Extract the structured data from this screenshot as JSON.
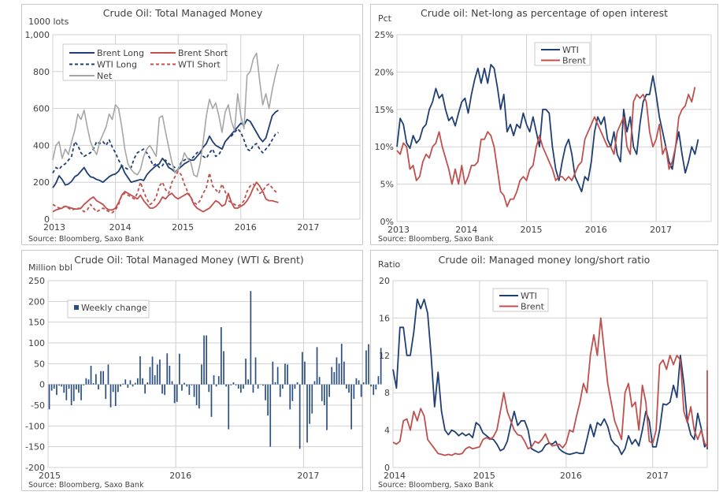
{
  "colors": {
    "navy": "#1f3f73",
    "red": "#c0504d",
    "gray": "#a6a6a6",
    "bar": "#2b4f81"
  },
  "chart_data": [
    {
      "id": "total-managed-money",
      "type": "line",
      "title": "Crude Oil: Total Managed Money",
      "ylabel": "1000 lots",
      "xlabel": "",
      "source": "Source: Bloomberg, Saxo Bank",
      "ylim": [
        0,
        1000
      ],
      "yticks": [
        0,
        200,
        400,
        600,
        800,
        1000
      ],
      "ytick_labels": [
        "0",
        "200",
        "400",
        "600",
        "800",
        "1,000"
      ],
      "xlim": [
        2013.0,
        2017.9
      ],
      "xticks": [
        2013,
        2014,
        2015,
        2016,
        2017
      ],
      "xtick_labels": [
        "2013",
        "2014",
        "2015",
        "2016",
        "2017"
      ],
      "grid": true,
      "legend": "top-left",
      "x_start": 2013.0,
      "x_step": 0.05,
      "series": [
        {
          "name": "Brent Long",
          "color": "navy",
          "dash": false,
          "values": [
            170,
            195,
            235,
            215,
            185,
            190,
            205,
            230,
            240,
            260,
            280,
            250,
            230,
            225,
            215,
            210,
            200,
            215,
            230,
            240,
            245,
            260,
            290,
            250,
            225,
            200,
            205,
            210,
            215,
            210,
            240,
            260,
            275,
            290,
            300,
            330,
            310,
            280,
            270,
            255,
            270,
            285,
            300,
            310,
            320,
            320,
            340,
            360,
            390,
            410,
            450,
            420,
            400,
            390,
            380,
            420,
            440,
            460,
            480,
            500,
            520,
            510,
            540,
            530,
            500,
            470,
            440,
            420,
            440,
            500,
            560,
            580,
            590
          ]
        },
        {
          "name": "Brent Short",
          "color": "red",
          "dash": false,
          "values": [
            40,
            50,
            55,
            60,
            70,
            65,
            60,
            55,
            55,
            60,
            80,
            95,
            110,
            120,
            100,
            90,
            80,
            60,
            50,
            50,
            60,
            90,
            130,
            150,
            140,
            130,
            120,
            110,
            130,
            100,
            80,
            60,
            60,
            70,
            90,
            120,
            110,
            130,
            140,
            120,
            110,
            120,
            130,
            140,
            120,
            80,
            60,
            50,
            40,
            50,
            60,
            80,
            100,
            90,
            70,
            80,
            140,
            90,
            60,
            60,
            70,
            80,
            100,
            130,
            170,
            200,
            180,
            150,
            110,
            100,
            100,
            95,
            90
          ]
        },
        {
          "name": "WTI Long",
          "color": "navy",
          "dash": true,
          "values": [
            250,
            280,
            270,
            290,
            300,
            320,
            340,
            420,
            400,
            360,
            340,
            350,
            360,
            380,
            420,
            410,
            420,
            400,
            430,
            390,
            360,
            320,
            290,
            280,
            270,
            280,
            330,
            360,
            370,
            380,
            360,
            330,
            290,
            300,
            280,
            290,
            320,
            300,
            290,
            280,
            270,
            310,
            320,
            330,
            320,
            340,
            360,
            370,
            340,
            330,
            360,
            380,
            340,
            350,
            380,
            420,
            440,
            450,
            470,
            490,
            470,
            430,
            380,
            370,
            400,
            410,
            380,
            360,
            380,
            400,
            430,
            460,
            470
          ]
        },
        {
          "name": "WTI Short",
          "color": "red",
          "dash": true,
          "values": [
            80,
            70,
            60,
            65,
            70,
            60,
            50,
            55,
            60,
            55,
            40,
            50,
            80,
            60,
            40,
            50,
            60,
            50,
            40,
            35,
            50,
            80,
            130,
            140,
            130,
            120,
            110,
            140,
            200,
            150,
            110,
            80,
            90,
            120,
            180,
            200,
            160,
            140,
            200,
            230,
            260,
            240,
            190,
            150,
            120,
            90,
            80,
            100,
            140,
            170,
            250,
            180,
            160,
            140,
            190,
            150,
            100,
            90,
            80,
            70,
            80,
            100,
            150,
            180,
            190,
            170,
            140,
            150,
            180,
            190,
            170,
            150,
            140
          ]
        },
        {
          "name": "Net",
          "color": "gray",
          "dash": false,
          "values": [
            320,
            400,
            420,
            330,
            380,
            350,
            420,
            480,
            570,
            540,
            590,
            500,
            420,
            380,
            350,
            420,
            460,
            500,
            570,
            540,
            620,
            600,
            500,
            380,
            300,
            270,
            250,
            240,
            270,
            340,
            380,
            400,
            370,
            340,
            550,
            560,
            470,
            390,
            310,
            250,
            270,
            300,
            360,
            330,
            310,
            240,
            230,
            300,
            420,
            560,
            650,
            600,
            630,
            560,
            470,
            580,
            620,
            530,
            480,
            680,
            560,
            490,
            780,
            800,
            870,
            900,
            750,
            620,
            680,
            600,
            700,
            780,
            840
          ]
        }
      ]
    },
    {
      "id": "net-long-pct-open-interest",
      "type": "line",
      "title": "Crude oil: Net-long as percentage of open interest",
      "ylabel": "Pct",
      "xlabel": "",
      "source": "Source: Bloomberg, Saxo Bank",
      "ylim": [
        0,
        25
      ],
      "yticks": [
        0,
        5,
        10,
        15,
        20,
        25
      ],
      "ytick_labels": [
        "0%",
        "5%",
        "10%",
        "15%",
        "20%",
        "25%"
      ],
      "xlim": [
        2013.0,
        2017.85
      ],
      "xticks": [
        2013,
        2014,
        2015,
        2016,
        2017
      ],
      "xtick_labels": [
        "2013",
        "2014",
        "2015",
        "2016",
        "2017"
      ],
      "grid": true,
      "legend": "top-center",
      "x_start": 2013.0,
      "x_step": 0.05,
      "series": [
        {
          "name": "WTI",
          "color": "navy",
          "values": [
            10,
            13.8,
            13,
            10.5,
            9.8,
            11.5,
            10.5,
            11,
            12.5,
            13,
            15,
            16,
            17.8,
            16.5,
            17,
            15,
            13.5,
            14,
            12.8,
            14.5,
            16,
            16.5,
            14.5,
            17,
            19,
            20.5,
            18.5,
            20.5,
            18.5,
            21,
            20.5,
            18,
            15,
            17,
            12,
            13,
            11.5,
            13,
            12.5,
            14.5,
            13,
            12,
            14,
            12,
            10,
            15,
            15,
            14.5,
            10,
            7,
            5.5,
            8,
            10,
            11,
            9,
            6,
            5,
            4,
            6,
            5.5,
            8,
            12,
            14,
            13,
            14,
            11,
            10,
            12,
            9,
            8,
            15,
            12,
            14,
            10,
            9,
            13,
            16,
            17,
            17,
            19.5,
            17,
            14,
            12,
            10,
            8,
            7,
            10,
            12,
            9,
            6.5,
            8,
            10,
            9,
            11
          ]
        },
        {
          "name": "Brent",
          "color": "red",
          "values": [
            9.5,
            9,
            10.5,
            10,
            7,
            7.5,
            5.5,
            6,
            8,
            9,
            8.5,
            10,
            10.5,
            12,
            10,
            8.5,
            7,
            5,
            7,
            5,
            7.5,
            5,
            6,
            7.5,
            7.5,
            8,
            11,
            11,
            12,
            11.5,
            10,
            7,
            4,
            3.5,
            2,
            3,
            3,
            4,
            5.5,
            6,
            5.5,
            7,
            7.5,
            10,
            11.5,
            10,
            9,
            8,
            7,
            5.5,
            6,
            6,
            5.5,
            6,
            5.5,
            6.5,
            7.5,
            8,
            11,
            12,
            13,
            14,
            13,
            12,
            11,
            10,
            10,
            9,
            12,
            13,
            14,
            10,
            9,
            16,
            17,
            16.5,
            17,
            16,
            12,
            10,
            11,
            13,
            9,
            10,
            7,
            8,
            10,
            14,
            15,
            15.5,
            17,
            16,
            18
          ]
        }
      ]
    },
    {
      "id": "weekly-change-wti-brent",
      "type": "bar",
      "title": "Crude Oil: Total Managed Money (WTI & Brent)",
      "ylabel": "Million bbl",
      "xlabel": "",
      "source": "Source: Bloomberg, Saxo Bank",
      "ylim": [
        -200,
        250
      ],
      "yticks": [
        -200,
        -150,
        -100,
        -50,
        0,
        50,
        100,
        150,
        200,
        250
      ],
      "ytick_labels": [
        "-200",
        "-150",
        "-100",
        "-50",
        "0",
        "50",
        "100",
        "150",
        "200",
        "250"
      ],
      "xlim": [
        2015.0,
        2017.46
      ],
      "xticks": [
        2015,
        2016,
        2017
      ],
      "xtick_labels": [
        "2015",
        "2016",
        "2017"
      ],
      "grid": true,
      "legend": "top-left",
      "x_start": 2015.0,
      "x_step": 0.01923,
      "series": [
        {
          "name": "Weekly change",
          "color": "bar",
          "values": [
            -60,
            -15,
            -10,
            -25,
            -3,
            -5,
            -20,
            -38,
            -10,
            -50,
            -40,
            -12,
            -20,
            -38,
            -2,
            15,
            12,
            45,
            3,
            25,
            -12,
            32,
            32,
            -35,
            48,
            -55,
            -18,
            -52,
            -18,
            -5,
            2,
            12,
            -8,
            10,
            -5,
            4,
            15,
            68,
            15,
            -22,
            5,
            42,
            67,
            22,
            48,
            60,
            -22,
            -25,
            75,
            45,
            8,
            -45,
            -42,
            74,
            -15,
            4,
            -5,
            -25,
            -2,
            -30,
            -50,
            -58,
            48,
            118,
            118,
            -18,
            -78,
            22,
            -5,
            20,
            138,
            80,
            -5,
            -108,
            -2,
            5,
            -2,
            -10,
            -20,
            -10,
            62,
            12,
            225,
            -20,
            65,
            -10,
            0,
            -3,
            -38,
            -75,
            -150,
            55,
            5,
            42,
            -30,
            -10,
            50,
            48,
            -60,
            -40,
            -10,
            5,
            -155,
            78,
            55,
            -140,
            -95,
            -70,
            8,
            90,
            18,
            -40,
            -50,
            -110,
            -30,
            42,
            30,
            65,
            50,
            98,
            55,
            -10,
            -20,
            -108,
            -35,
            15,
            10,
            -30,
            5,
            82,
            97,
            -5,
            -25,
            -12,
            20,
            88
          ]
        }
      ]
    },
    {
      "id": "long-short-ratio",
      "type": "line",
      "title": "Crude oil: Managed money long/short ratio",
      "ylabel": "Ratio",
      "xlabel": "",
      "source": "Source: Bloomberg, Saxo Bank",
      "ylim": [
        0,
        20
      ],
      "yticks": [
        0,
        4,
        8,
        12,
        16,
        20
      ],
      "ytick_labels": [
        "0",
        "4",
        "8",
        "12",
        "16",
        "20"
      ],
      "xlim": [
        2014.0,
        2017.63
      ],
      "xticks": [
        2014,
        2015,
        2016,
        2017
      ],
      "xtick_labels": [
        "2014",
        "2015",
        "2016",
        "2017"
      ],
      "grid": true,
      "legend": "top-center",
      "x_start": 2014.0,
      "x_step": 0.04,
      "series": [
        {
          "name": "WTI",
          "color": "navy",
          "values": [
            10.5,
            8.5,
            15,
            15,
            12,
            12,
            14.5,
            18,
            17,
            18,
            16.5,
            12,
            6.5,
            10.2,
            6,
            4,
            3.5,
            4,
            3.8,
            3.4,
            3.7,
            3.4,
            3.6,
            3.2,
            4.8,
            4.5,
            3.7,
            3.4,
            3.1,
            3.0,
            2.5,
            1.8,
            2.0,
            2.8,
            4.5,
            6,
            4.5,
            5,
            5,
            4,
            2,
            1.8,
            1.6,
            1.8,
            2.4,
            2.6,
            2.5,
            2.8,
            2.0,
            1.7,
            1.5,
            1.4,
            1.5,
            1.6,
            1.5,
            1.5,
            3,
            4.6,
            3.3,
            4.8,
            4.5,
            5.2,
            4.4,
            3,
            2.5,
            2.2,
            1.4,
            2,
            3.4,
            2.5,
            3,
            2.3,
            4,
            6,
            5,
            2.2,
            2.2,
            4,
            6.8,
            6.7,
            7,
            8.8,
            7.5,
            12,
            9,
            5,
            3.5,
            3,
            5.8,
            4.2,
            2.2,
            2.5,
            3.2,
            2,
            2.3,
            4.3,
            4.2,
            2,
            2.2,
            3.3,
            3,
            2.5,
            3.6
          ]
        },
        {
          "name": "Brent",
          "color": "red",
          "values": [
            2.7,
            2.5,
            2.8,
            5,
            5.2,
            4,
            6,
            5,
            6.3,
            5.5,
            3,
            2.5,
            2,
            1.5,
            1.4,
            1.3,
            1.4,
            1.3,
            1.5,
            1.4,
            1.5,
            2,
            2.2,
            2,
            2.1,
            2.2,
            3,
            3.2,
            3.0,
            3.3,
            4,
            6,
            8,
            6,
            5,
            4,
            3.5,
            3.4,
            2.8,
            2,
            2.2,
            2.8,
            2.6,
            3,
            3.6,
            2.7,
            2.3,
            2.4,
            2.5,
            2.1,
            2.6,
            4,
            3.8,
            5.5,
            7,
            9,
            8,
            12,
            14.2,
            12,
            16,
            12.5,
            9,
            7,
            5,
            4,
            3,
            8,
            9,
            6.5,
            7,
            4,
            8.8,
            7,
            2.8,
            2.6,
            4,
            11,
            11.5,
            10.5,
            12,
            11,
            12,
            11.5,
            6,
            4.8,
            6.5,
            4,
            3,
            4,
            2.6,
            2.3,
            2.2,
            4,
            7.2,
            7,
            6.9,
            7.5,
            8.5,
            8,
            9.2,
            10.4
          ]
        }
      ]
    }
  ]
}
